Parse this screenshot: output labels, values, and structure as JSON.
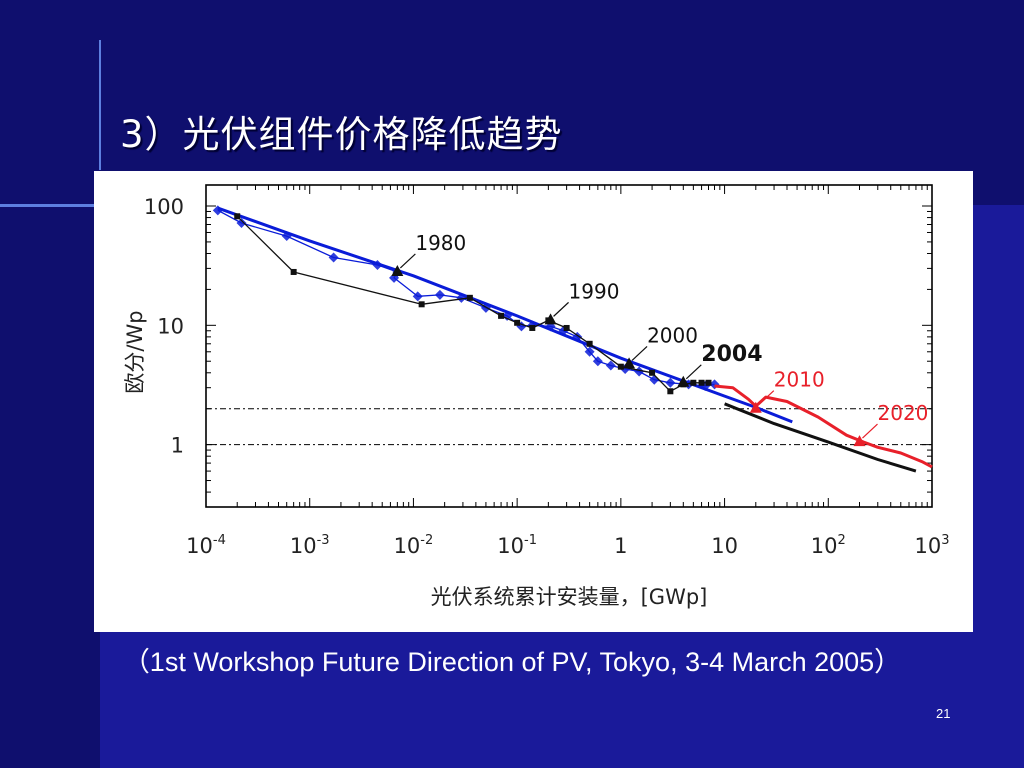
{
  "slide": {
    "title": "3）光伏组件价格降低趋势",
    "caption": "（1st Workshop Future Direction of PV, Tokyo, 3-4 March 2005）",
    "page_number": "21",
    "colors": {
      "background": "#1a1a9a",
      "text": "#ffffff",
      "accent_line": "#5d7fe0"
    }
  },
  "chart_data": {
    "type": "line",
    "title": "",
    "xlabel": "光伏系统累计安装量，[GWp]",
    "ylabel": "欧分/Wp",
    "xscale": "log",
    "yscale": "log",
    "xlim": [
      0.0001,
      1000
    ],
    "ylim": [
      0.3,
      150
    ],
    "grid": false,
    "xticks": [
      {
        "value": 0.0001,
        "base": "10",
        "exp": "-4"
      },
      {
        "value": 0.001,
        "base": "10",
        "exp": "-3"
      },
      {
        "value": 0.01,
        "base": "10",
        "exp": "-2"
      },
      {
        "value": 0.1,
        "base": "10",
        "exp": "-1"
      },
      {
        "value": 1,
        "base": "1",
        "exp": ""
      },
      {
        "value": 10,
        "base": "10",
        "exp": ""
      },
      {
        "value": 100,
        "base": "10",
        "exp": "2"
      },
      {
        "value": 1000,
        "base": "10",
        "exp": "3"
      }
    ],
    "yticks": [
      {
        "value": 100,
        "label": "100"
      },
      {
        "value": 10,
        "label": "10"
      },
      {
        "value": 1,
        "label": "1"
      }
    ],
    "reference_lines_y": [
      2,
      1
    ],
    "series": [
      {
        "color": "#0a1cd8",
        "marker": "diamond",
        "style": "solid",
        "points": [
          [
            0.00013,
            92
          ],
          [
            0.00022,
            72
          ],
          [
            0.0006,
            56
          ],
          [
            0.0017,
            37
          ],
          [
            0.0045,
            32
          ],
          [
            0.007,
            28
          ],
          [
            0.0065,
            25
          ],
          [
            0.011,
            17.5
          ],
          [
            0.018,
            18
          ],
          [
            0.029,
            17
          ],
          [
            0.05,
            14
          ],
          [
            0.08,
            12
          ],
          [
            0.11,
            9.8
          ],
          [
            0.14,
            10
          ],
          [
            0.21,
            9.8
          ],
          [
            0.28,
            9
          ],
          [
            0.38,
            8
          ],
          [
            0.5,
            6
          ],
          [
            0.6,
            5
          ],
          [
            0.8,
            4.6
          ],
          [
            1.1,
            4.3
          ],
          [
            1.5,
            4.1
          ],
          [
            2.1,
            3.5
          ],
          [
            3,
            3.3
          ],
          [
            4.5,
            3.2
          ],
          [
            6.5,
            3.1
          ],
          [
            8,
            3.2
          ]
        ]
      },
      {
        "color": "#0a1cd8",
        "marker": "none",
        "style": "solid",
        "points": [
          [
            0.00013,
            96
          ],
          [
            0.001,
            51
          ],
          [
            0.01,
            26
          ],
          [
            0.1,
            12
          ],
          [
            1,
            5.3
          ],
          [
            10,
            2.55
          ],
          [
            20,
            2.05
          ],
          [
            45,
            1.55
          ]
        ]
      },
      {
        "color": "#111111",
        "marker": "square",
        "style": "solid",
        "points": [
          [
            0.0002,
            82
          ],
          [
            0.0007,
            28
          ],
          [
            0.012,
            15
          ],
          [
            0.035,
            17
          ],
          [
            0.07,
            12
          ],
          [
            0.1,
            10.5
          ],
          [
            0.14,
            9.5
          ],
          [
            0.2,
            11
          ],
          [
            0.3,
            9.5
          ],
          [
            0.5,
            7
          ],
          [
            1,
            4.5
          ],
          [
            2,
            4
          ],
          [
            3,
            2.8
          ],
          [
            4,
            3.2
          ],
          [
            5,
            3.3
          ],
          [
            6,
            3.3
          ],
          [
            7,
            3.3
          ]
        ]
      },
      {
        "color": "#111111",
        "marker": "none",
        "style": "solid",
        "points": [
          [
            10,
            2.2
          ],
          [
            30,
            1.5
          ],
          [
            100,
            1.05
          ],
          [
            300,
            0.75
          ],
          [
            700,
            0.6
          ]
        ]
      },
      {
        "color": "#e8202a",
        "marker": "none",
        "style": "solid",
        "points": [
          [
            8,
            3.1
          ],
          [
            12,
            3
          ],
          [
            17,
            2.4
          ],
          [
            20,
            2.1
          ],
          [
            25,
            2.5
          ],
          [
            40,
            2.3
          ],
          [
            80,
            1.7
          ],
          [
            150,
            1.2
          ],
          [
            220,
            1.05
          ],
          [
            300,
            0.95
          ],
          [
            500,
            0.85
          ],
          [
            800,
            0.72
          ],
          [
            1000,
            0.65
          ]
        ]
      }
    ],
    "annotations": [
      {
        "label": "1980",
        "x": 0.007,
        "y": 28,
        "color": "#111111",
        "bold": false,
        "marker_color": "#111111"
      },
      {
        "label": "1990",
        "x": 0.21,
        "y": 11,
        "color": "#111111",
        "bold": false,
        "marker_color": "#111111"
      },
      {
        "label": "2000",
        "x": 1.2,
        "y": 4.7,
        "color": "#111111",
        "bold": false,
        "marker_color": "#111111"
      },
      {
        "label": "2004",
        "x": 4,
        "y": 3.3,
        "color": "#111111",
        "bold": true,
        "marker_color": "#111111"
      },
      {
        "label": "2010",
        "x": 20,
        "y": 2.0,
        "color": "#e8202a",
        "bold": false,
        "marker_color": "#e8202a"
      },
      {
        "label": "2020",
        "x": 200,
        "y": 1.05,
        "color": "#e8202a",
        "bold": false,
        "marker_color": "#e8202a"
      }
    ]
  }
}
